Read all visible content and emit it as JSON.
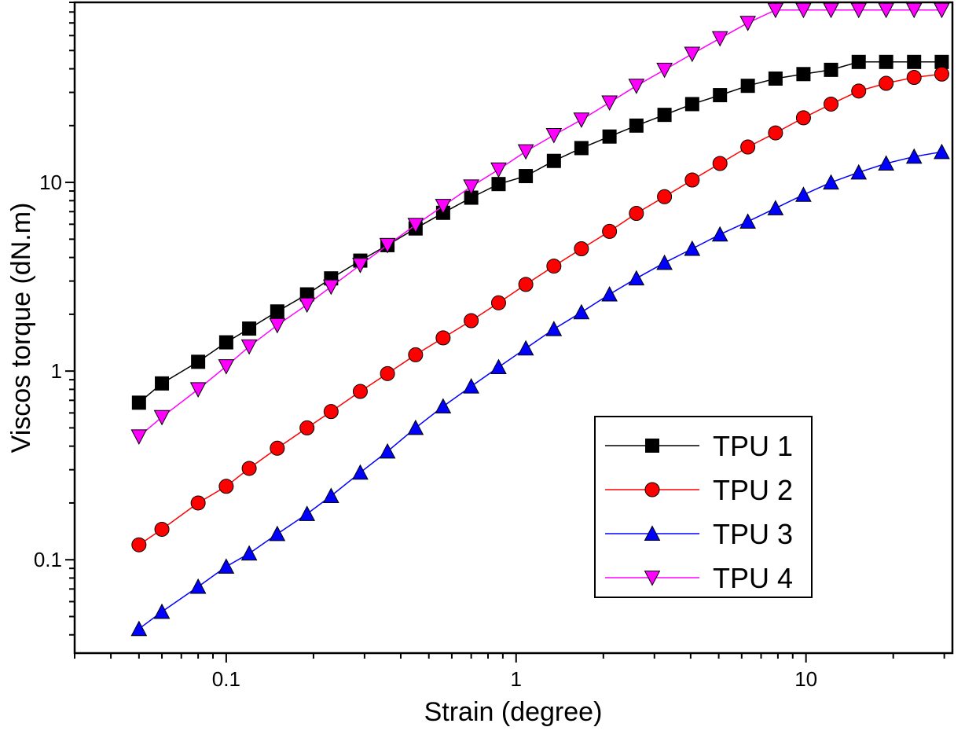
{
  "chart_data": {
    "type": "scatter",
    "title": "",
    "xlabel": "Strain (degree)",
    "ylabel": "Viscos torque (dN.m)",
    "xscale": "log",
    "yscale": "log",
    "xlim": [
      0.03,
      32
    ],
    "ylim": [
      0.032,
      90
    ],
    "x_ticks": [
      {
        "value": 0.1,
        "label": "0.1"
      },
      {
        "value": 1,
        "label": "1"
      },
      {
        "value": 10,
        "label": "10"
      }
    ],
    "y_ticks": [
      {
        "value": 0.1,
        "label": "0.1"
      },
      {
        "value": 1,
        "label": "1"
      },
      {
        "value": 10,
        "label": "10"
      }
    ],
    "grid": false,
    "legend_position": "bottom-right",
    "x": [
      0.05,
      0.06,
      0.08,
      0.1,
      0.12,
      0.15,
      0.19,
      0.23,
      0.29,
      0.36,
      0.45,
      0.56,
      0.7,
      0.87,
      1.08,
      1.35,
      1.68,
      2.1,
      2.6,
      3.25,
      4.05,
      5.05,
      6.3,
      7.85,
      9.8,
      12.2,
      15.2,
      18.9,
      23.6,
      29.4
    ],
    "series": [
      {
        "name": "TPU 1",
        "color": "#000000",
        "marker": "square",
        "values": [
          0.68,
          0.86,
          1.12,
          1.42,
          1.68,
          2.07,
          2.55,
          3.1,
          3.85,
          4.65,
          5.7,
          6.9,
          8.3,
          9.8,
          10.8,
          13.0,
          15.2,
          17.5,
          20.0,
          22.8,
          26.0,
          29.0,
          32.5,
          35.5,
          37.5,
          39.5,
          43.5,
          43.5,
          43.5,
          43.5
        ]
      },
      {
        "name": "TPU 2",
        "color": "#ff0000",
        "marker": "circle",
        "values": [
          0.12,
          0.145,
          0.2,
          0.245,
          0.305,
          0.39,
          0.5,
          0.61,
          0.78,
          0.97,
          1.22,
          1.5,
          1.85,
          2.3,
          2.88,
          3.6,
          4.45,
          5.5,
          6.85,
          8.4,
          10.3,
          12.6,
          15.4,
          18.3,
          22.0,
          26.0,
          30.5,
          33.5,
          36.0,
          37.5
        ]
      },
      {
        "name": "TPU 3",
        "color": "#0000ff",
        "marker": "triangle-up",
        "values": [
          0.043,
          0.053,
          0.072,
          0.092,
          0.108,
          0.137,
          0.175,
          0.218,
          0.29,
          0.375,
          0.5,
          0.65,
          0.83,
          1.05,
          1.32,
          1.67,
          2.05,
          2.55,
          3.1,
          3.75,
          4.45,
          5.3,
          6.2,
          7.3,
          8.6,
          10.0,
          11.3,
          12.6,
          13.7,
          14.5
        ]
      },
      {
        "name": "TPU 4",
        "color": "#ff00ff",
        "marker": "triangle-down",
        "values": [
          0.45,
          0.57,
          0.8,
          1.06,
          1.35,
          1.75,
          2.25,
          2.8,
          3.65,
          4.65,
          5.95,
          7.5,
          9.5,
          11.7,
          14.6,
          17.8,
          21.5,
          26.5,
          32.5,
          39.5,
          48.0,
          58.0,
          70.0,
          82.0,
          82.0,
          82.0,
          82.0,
          82.0,
          82.0,
          82.0
        ]
      }
    ]
  }
}
